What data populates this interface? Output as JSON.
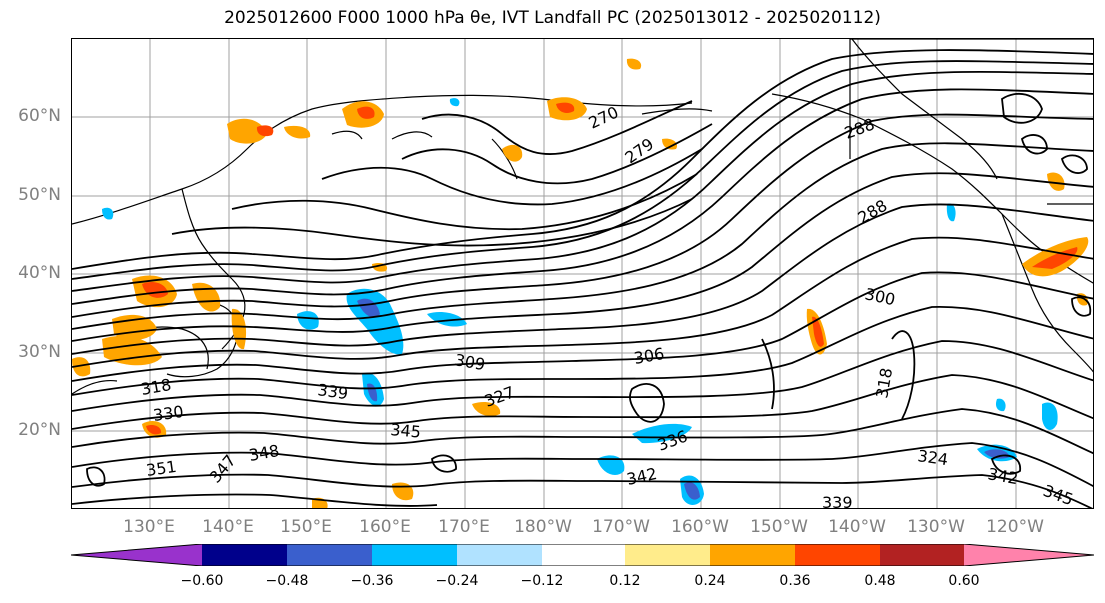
{
  "title": "2025012600 F000 1000 hPa θe, IVT Landfall PC (2025013012 - 2025020112)",
  "map": {
    "lat_labels": [
      "60°N",
      "50°N",
      "40°N",
      "30°N",
      "20°N"
    ],
    "lon_labels": [
      "130°E",
      "140°E",
      "150°E",
      "160°E",
      "170°E",
      "180°W",
      "170°W",
      "160°W",
      "150°W",
      "140°W",
      "130°W",
      "120°W"
    ],
    "contour_labels": [
      "270",
      "279",
      "288",
      "288",
      "300",
      "306",
      "309",
      "318",
      "318",
      "324",
      "327",
      "330",
      "336",
      "339",
      "339",
      "342",
      "342",
      "345",
      "345",
      "347",
      "348",
      "351"
    ]
  },
  "colorbar": {
    "colors": [
      "#9932cc",
      "#00008b",
      "#3a5fcd",
      "#00bfff",
      "#b0e2ff",
      "#ffffff",
      "#ffec8b",
      "#ffa500",
      "#ff4500",
      "#b22222",
      "#ff82ab"
    ],
    "tick_labels": [
      "−0.60",
      "−0.48",
      "−0.36",
      "−0.24",
      "−0.12",
      "0.12",
      "0.24",
      "0.36",
      "0.48",
      "0.60"
    ]
  }
}
